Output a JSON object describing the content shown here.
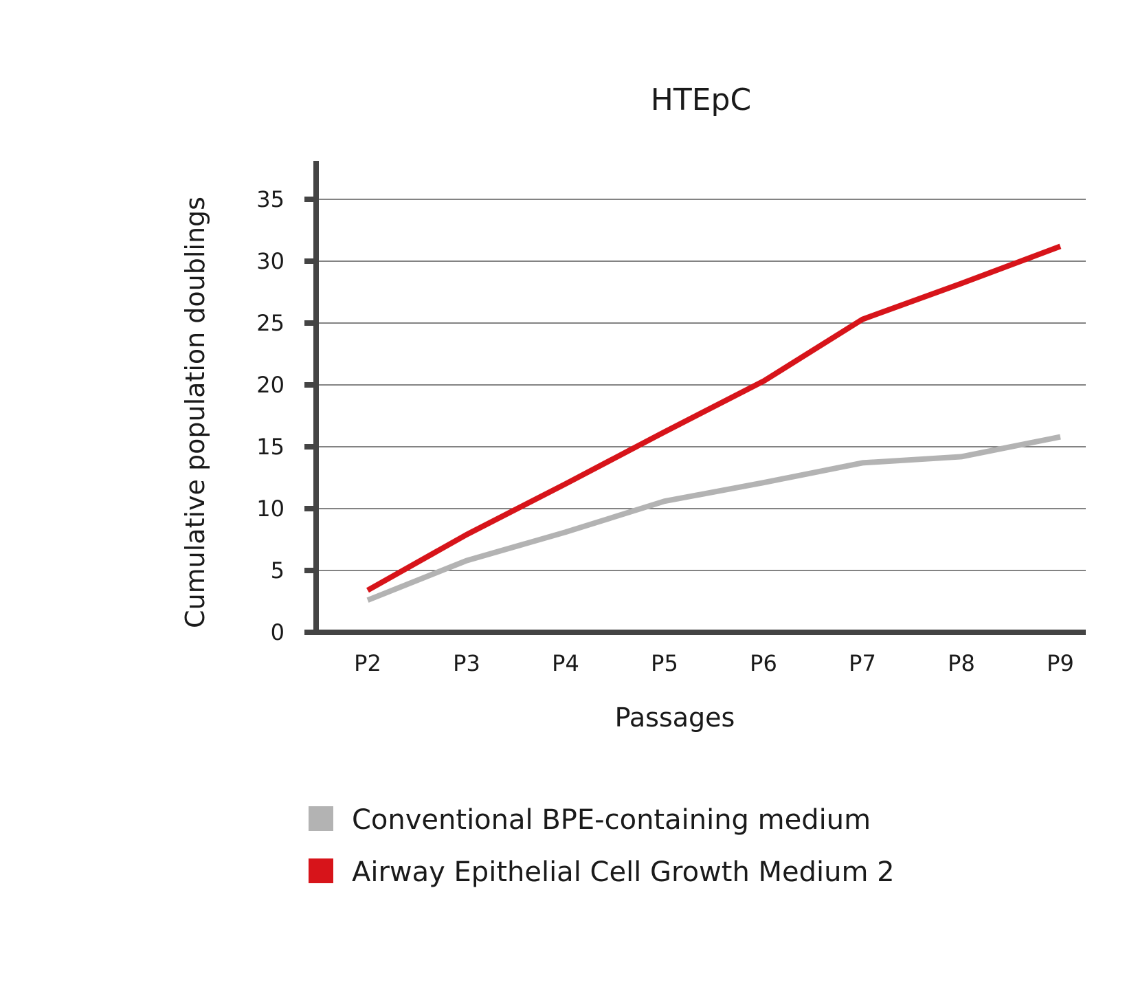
{
  "chart_data": {
    "type": "line",
    "title": "HTEpC",
    "xlabel": "Passages",
    "ylabel": "Cumulative population doublings",
    "categories": [
      "P2",
      "P3",
      "P4",
      "P5",
      "P6",
      "P7",
      "P8",
      "P9"
    ],
    "yticks": [
      "0",
      "5",
      "10",
      "15",
      "20",
      "25",
      "30",
      "35"
    ],
    "ylim": [
      0,
      35
    ],
    "grid": true,
    "legend_position": "bottom",
    "series": [
      {
        "name": "Conventional BPE-containing medium",
        "color": "#b3b3b3",
        "values": [
          2.6,
          5.8,
          8.1,
          10.6,
          12.1,
          13.7,
          14.2,
          15.8
        ]
      },
      {
        "name": "Airway Epithelial Cell Growth Medium 2",
        "color": "#d7141a",
        "values": [
          3.4,
          7.9,
          12.0,
          16.2,
          20.3,
          25.3,
          28.2,
          31.2
        ]
      }
    ]
  }
}
